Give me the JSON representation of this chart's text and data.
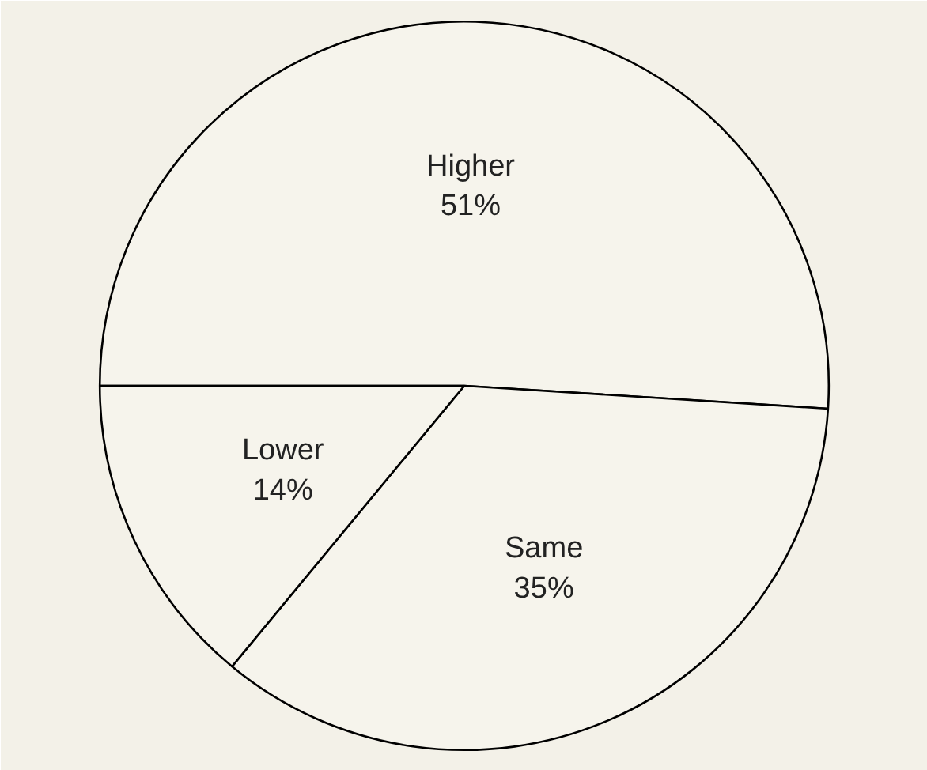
{
  "chart_data": {
    "type": "pie",
    "categories": [
      "Higher",
      "Same",
      "Lower"
    ],
    "values": [
      51,
      35,
      14
    ],
    "value_labels": [
      "51%",
      "35%",
      "14%"
    ],
    "colors": [
      "#f6f4ec",
      "#f6f4ec",
      "#f6f4ec"
    ]
  }
}
